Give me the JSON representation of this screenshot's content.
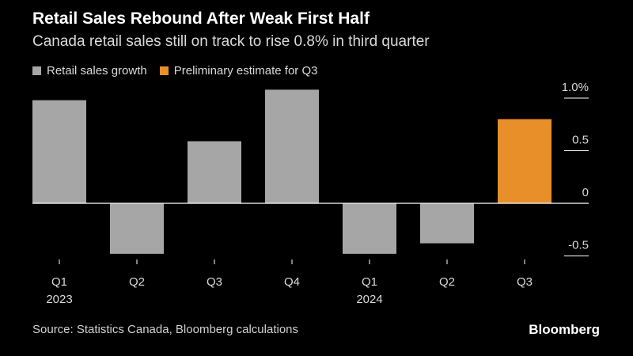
{
  "title": "Retail Sales Rebound After Weak First Half",
  "subtitle": "Canada retail sales still on track to rise 0.8% in third quarter",
  "source": "Source: Statistics Canada, Bloomberg calculations",
  "brand": "Bloomberg",
  "colors": {
    "background": "#000000",
    "actual": "#a6a6a6",
    "estimate": "#e88f2a",
    "text": "#ffffff"
  },
  "chart_data": {
    "type": "bar",
    "categories": [
      "Q1",
      "Q2",
      "Q3",
      "Q4",
      "Q1",
      "Q2",
      "Q3"
    ],
    "year_labels": [
      "2023",
      "",
      "",
      "",
      "2024",
      "",
      ""
    ],
    "series": [
      {
        "name": "Retail sales growth",
        "values": [
          0.98,
          -0.48,
          0.59,
          1.08,
          -0.48,
          -0.38,
          null
        ]
      },
      {
        "name": "Preliminary estimate for Q3",
        "values": [
          null,
          null,
          null,
          null,
          null,
          null,
          0.8
        ]
      }
    ],
    "ylim": [
      -0.55,
      1.1
    ],
    "yticks": [
      {
        "value": 1.0,
        "label": "1.0%"
      },
      {
        "value": 0.5,
        "label": "0.5"
      },
      {
        "value": 0,
        "label": "0"
      },
      {
        "value": -0.5,
        "label": "-0.5"
      }
    ],
    "legend_position": "top-left",
    "grid": false
  }
}
